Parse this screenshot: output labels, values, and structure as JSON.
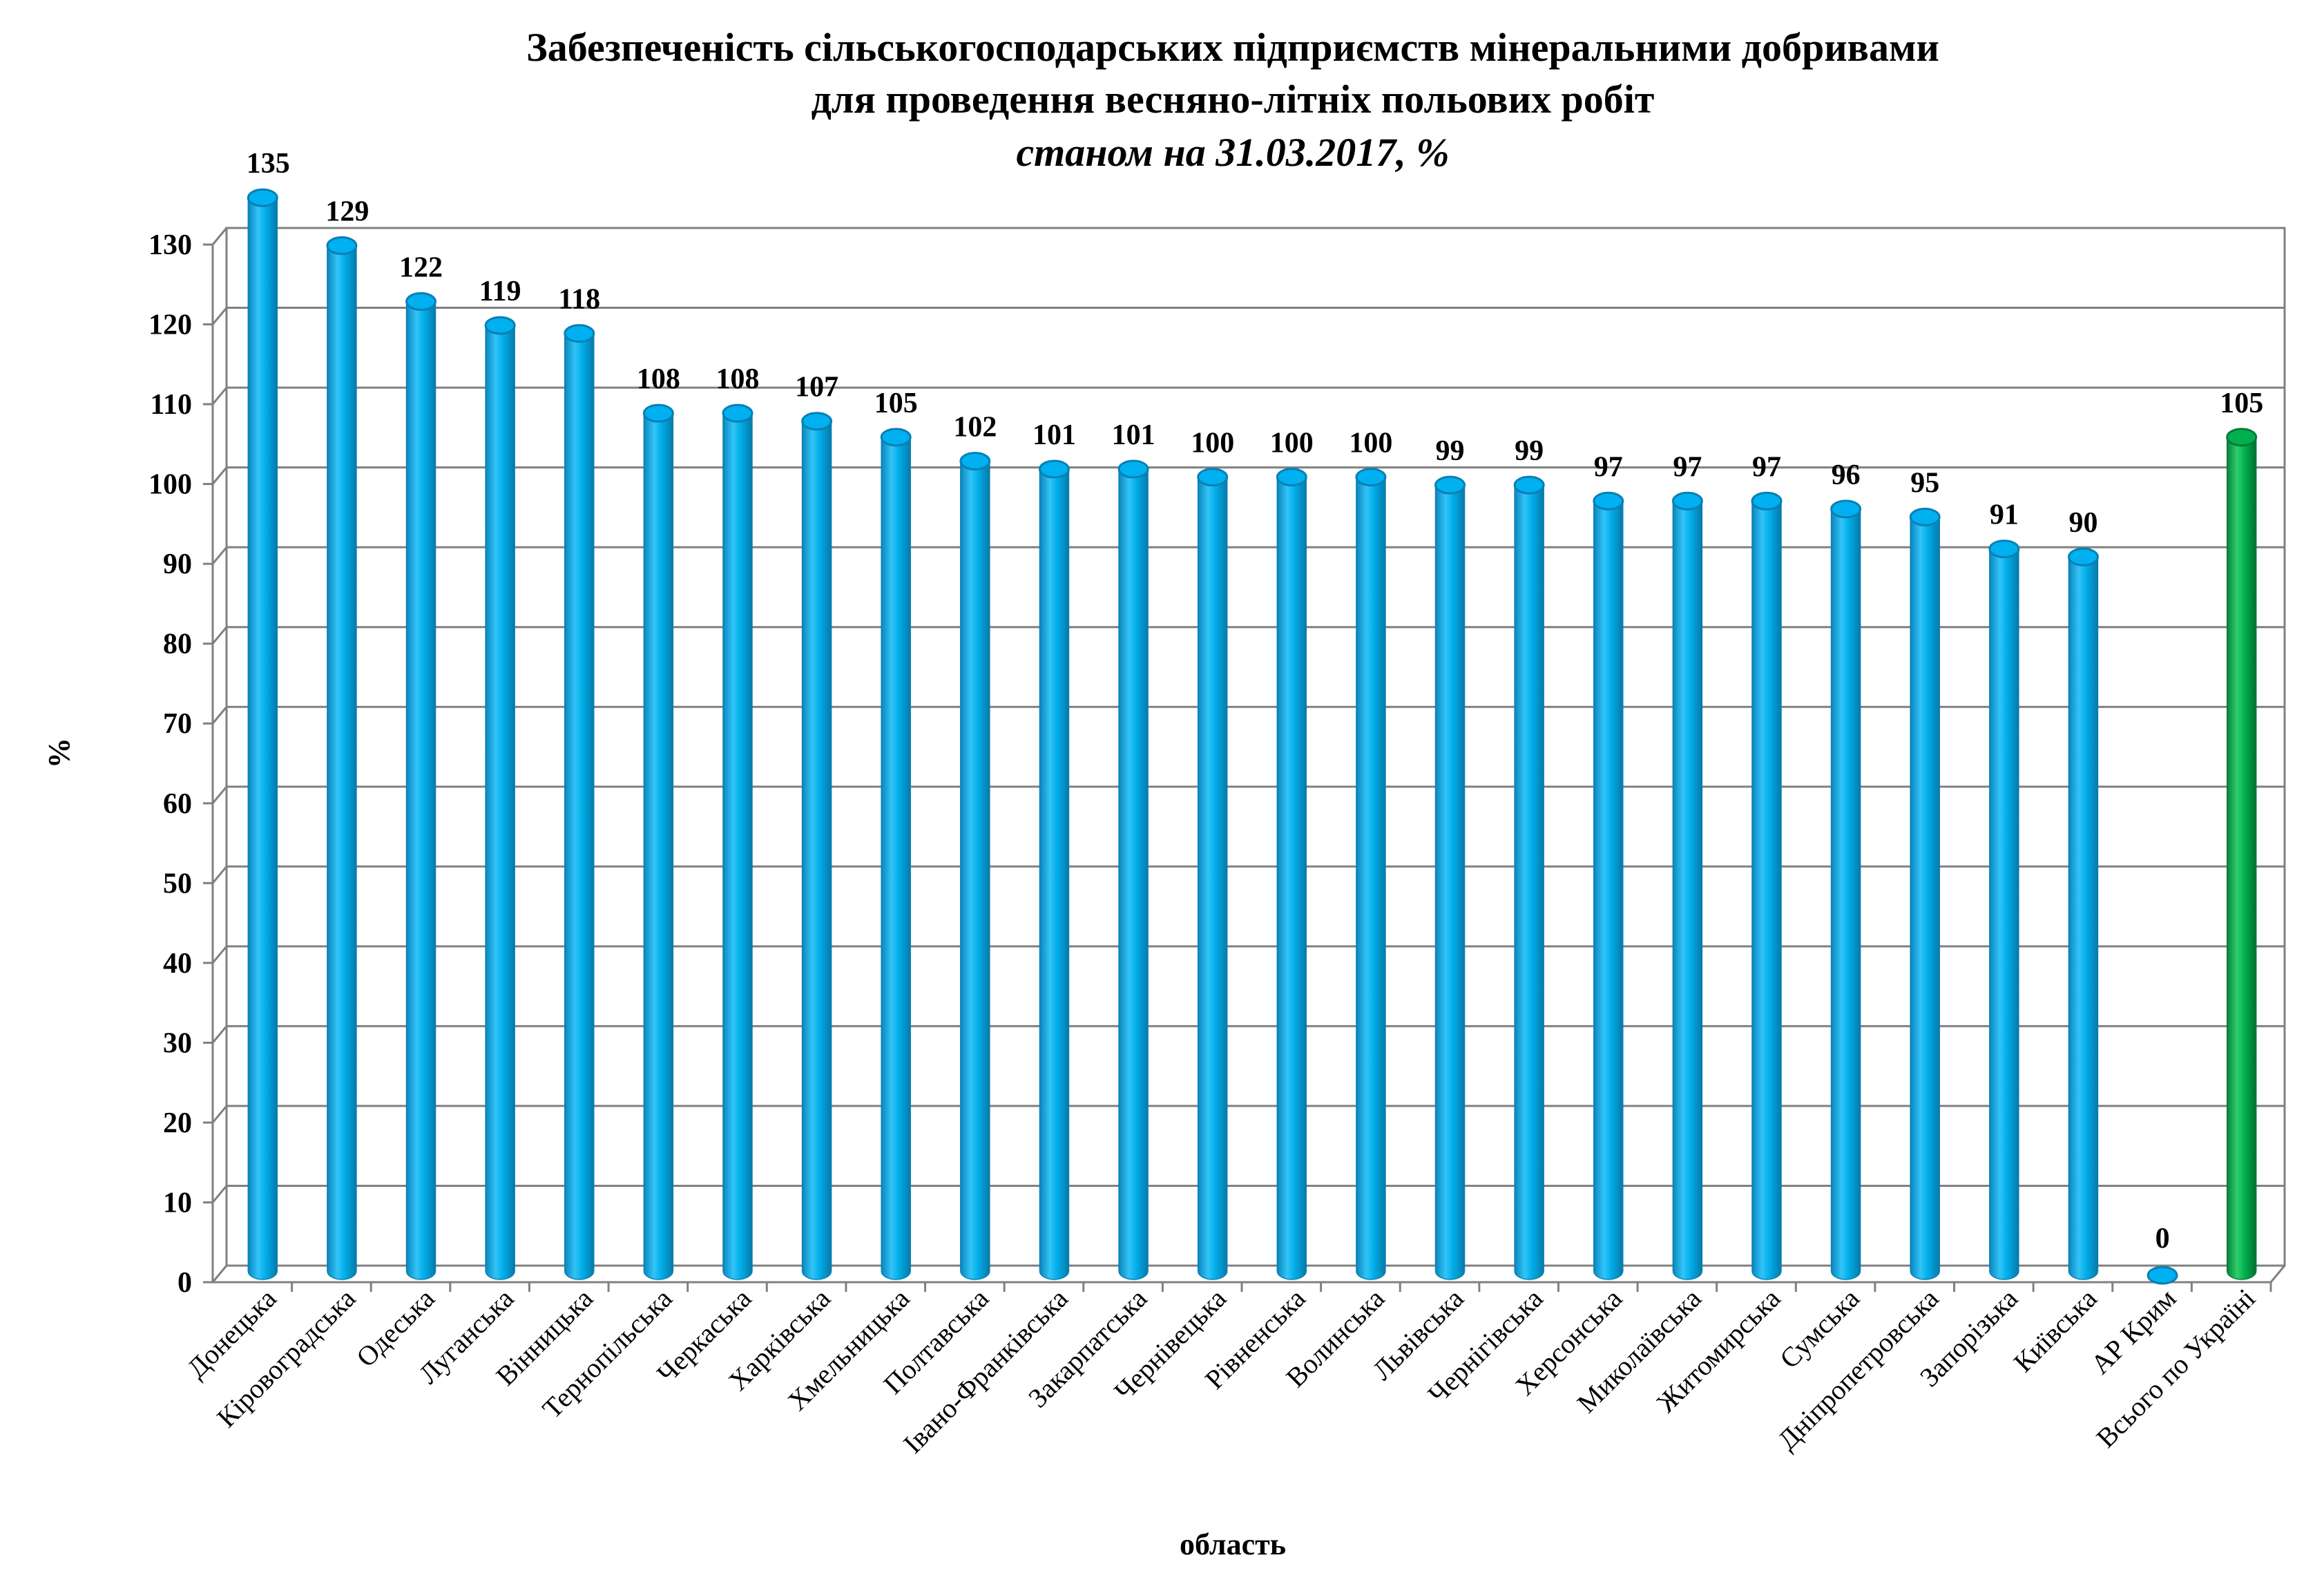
{
  "chart_data": {
    "type": "bar",
    "title": "Забезпеченість сільськогосподарських підприємств мінеральними добривами",
    "subtitle": "для проведення весняно-літніх польових робіт",
    "subtitle2": "станом на 31.03.2017, %",
    "xlabel": "область",
    "ylabel": "%",
    "ylim": [
      0,
      130
    ],
    "yticks": [
      0,
      10,
      20,
      30,
      40,
      50,
      60,
      70,
      80,
      90,
      100,
      110,
      120,
      130
    ],
    "grid": true,
    "legend": "none",
    "categories": [
      "Донецька",
      "Кіровоградська",
      "Одеська",
      "Луганська",
      "Вінницька",
      "Тернопільська",
      "Черкаська",
      "Харківська",
      "Хмельницька",
      "Полтавська",
      "Івано-Франківська",
      "Закарпатська",
      "Чернівецька",
      "Рівненська",
      "Волинська",
      "Львівська",
      "Чернігівська",
      "Херсонська",
      "Миколаївська",
      "Житомирська",
      "Сумська",
      "Дніпропетровська",
      "Запорізька",
      "Київська",
      "АР Крим",
      "Всього по Україні"
    ],
    "values": [
      135,
      129,
      122,
      119,
      118,
      108,
      108,
      107,
      105,
      102,
      101,
      101,
      100,
      100,
      100,
      99,
      99,
      97,
      97,
      97,
      96,
      95,
      91,
      90,
      0,
      105
    ],
    "value_labels": [
      "135",
      "129",
      "122",
      "119",
      "118",
      "108",
      "108",
      "107",
      "105",
      "102",
      "101",
      "101",
      "100",
      "100",
      "100",
      "99",
      "99",
      "97",
      "97",
      "97",
      "96",
      "95",
      "91",
      "90",
      "0",
      "105"
    ],
    "colors": {
      "regions": "#00b0f0",
      "regions_dark": "#0a7fb3",
      "total": "#00b050",
      "total_dark": "#087a38",
      "grid": "#808080"
    }
  }
}
